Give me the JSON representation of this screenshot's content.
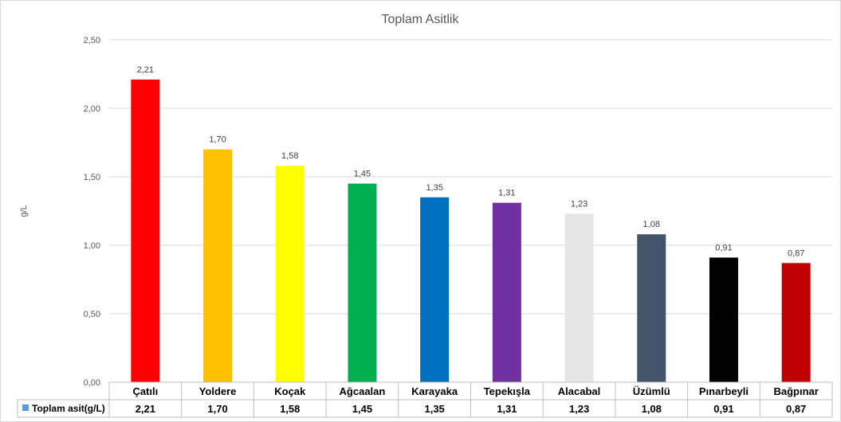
{
  "chart_data": {
    "type": "bar",
    "title": "Toplam Asitlik",
    "xlabel": "",
    "ylabel": "g/L",
    "ylim": [
      0,
      2.5
    ],
    "yticks": [
      "0,00",
      "0,50",
      "1,00",
      "1,50",
      "2,00",
      "2,50"
    ],
    "grid": true,
    "legend": "data-table-left",
    "categories": [
      "Çatılı",
      "Yoldere",
      "Koçak",
      "Ağcaalan",
      "Karayaka",
      "Tepekışla",
      "Alacabal",
      "Üzümlü",
      "Pınarbeyli",
      "Bağpınar"
    ],
    "series": [
      {
        "name": "Toplam asit(g/L)",
        "values": [
          2.21,
          1.7,
          1.58,
          1.45,
          1.35,
          1.31,
          1.23,
          1.08,
          0.91,
          0.87
        ],
        "labels": [
          "2,21",
          "1,70",
          "1,58",
          "1,45",
          "1,35",
          "1,31",
          "1,23",
          "1,08",
          "0,91",
          "0,87"
        ],
        "legend_color": "#5B9BD5"
      }
    ],
    "bar_colors": [
      "#FF0000",
      "#FFC000",
      "#FFFF00",
      "#00B050",
      "#0070C0",
      "#7030A0",
      "#E7E6E6",
      "#44546A",
      "#000000",
      "#C00000"
    ]
  }
}
